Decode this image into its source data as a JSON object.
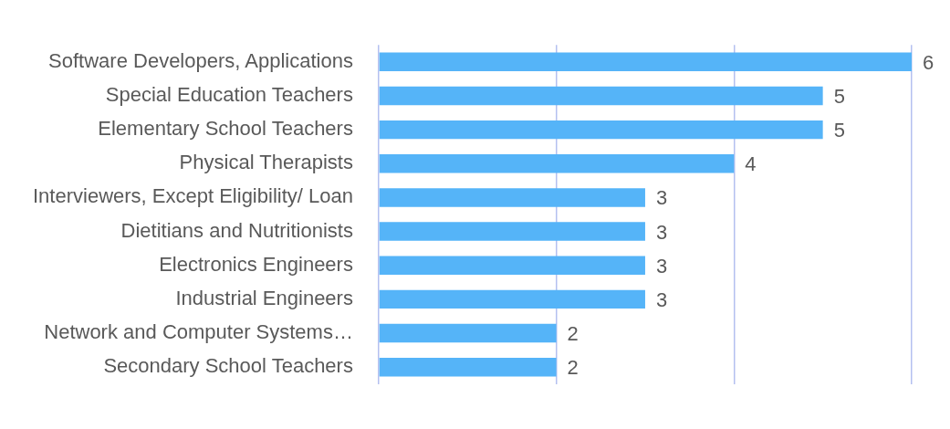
{
  "chart_data": {
    "type": "bar",
    "orientation": "horizontal",
    "categories": [
      "Software Developers, Applications",
      "Special Education Teachers",
      "Elementary School Teachers",
      "Physical Therapists",
      "Interviewers, Except Eligibility/ Loan",
      "Dietitians and Nutritionists",
      "Electronics Engineers",
      "Industrial Engineers",
      "Network and Computer Systems…",
      "Secondary School Teachers"
    ],
    "values": [
      6,
      5,
      5,
      4,
      3,
      3,
      3,
      3,
      2,
      2
    ],
    "color": "#55b4f8",
    "xlim": [
      0,
      6
    ],
    "xticks": [
      {
        "value": 0,
        "label": null
      },
      {
        "value": 2,
        "label": null
      },
      {
        "value": 4,
        "label": null
      },
      {
        "value": 6,
        "label": null
      }
    ],
    "grid": "x",
    "tick_labels": "y",
    "data_labels": true,
    "legend": false
  }
}
